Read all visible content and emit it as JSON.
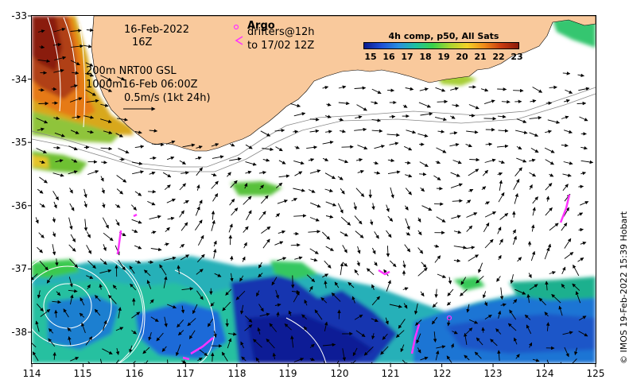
{
  "header": {
    "date": "16-Feb-2022",
    "time": "16Z",
    "argo_label": "Argo",
    "drifters_label": "drifters@12h",
    "drifters_to": "to 17/02 12Z",
    "nrt_line": "200m  NRT00 GSL",
    "contour_line": "1000m16-Feb 06:00Z",
    "scale_line": "0.5m/s (1kt 24h)"
  },
  "colorbar": {
    "title": "4h comp, p50, All Sats",
    "ticks": [
      "15",
      "16",
      "17",
      "18",
      "19",
      "20",
      "21",
      "22",
      "23"
    ],
    "colors": [
      "#0a1a8c",
      "#1e4fd6",
      "#2a8fe0",
      "#1fc0a0",
      "#3ad14a",
      "#a8d630",
      "#f3d227",
      "#f08a1a",
      "#c83a10",
      "#8a1a0a"
    ]
  },
  "axes": {
    "x_ticks": [
      "114",
      "115",
      "116",
      "117",
      "118",
      "119",
      "120",
      "121",
      "122",
      "123",
      "124",
      "125"
    ],
    "y_ticks": [
      "-33",
      "-34",
      "-35",
      "-36",
      "-37",
      "-38"
    ]
  },
  "credit": "© IMOS 19-Feb-2022 15:39 Hobart",
  "colors": {
    "land": "#f9c99c",
    "drifter": "#ff33ff",
    "current_arrow": "#000000",
    "sst_contour": "#ffffff"
  }
}
